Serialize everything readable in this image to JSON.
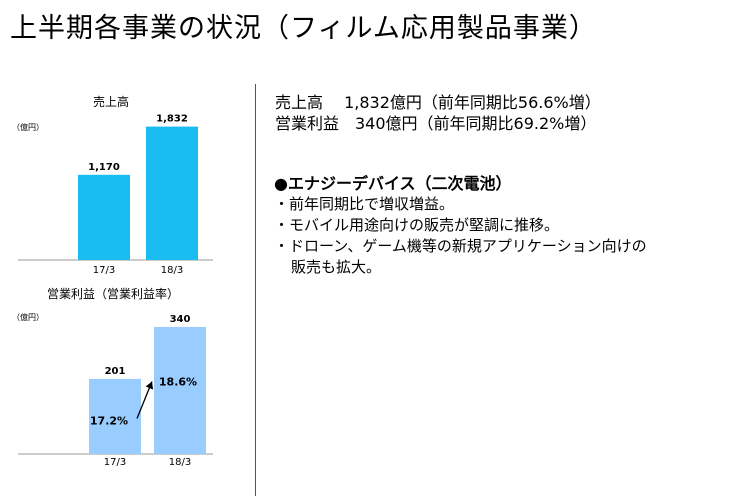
{
  "page": {
    "title": "上半期各事業の状況（フィルム応用製品事業）"
  },
  "summary": {
    "line1": "売上高　 1,832億円（前年同期比56.6%増）",
    "line2": "営業利益　340億円（前年同期比69.2%増）"
  },
  "segment": {
    "heading": "●エナジーデバイス（二次電池）",
    "bullets": [
      "・前年同期比で増収増益。",
      "・モバイル用途向けの販売が堅調に推移。",
      "・ドローン、ゲーム機等の新規アプリケーション向けの"
    ],
    "continuation": "販売も拡大。"
  },
  "colors": {
    "sales_bar": "#19bdef",
    "profit_bar": "#99ccff",
    "arrow": "#000000",
    "divider": "#555555"
  },
  "chart_data": [
    {
      "type": "bar",
      "title": "売上高",
      "unit_label": "（億円）",
      "categories": [
        "17/3",
        "18/3"
      ],
      "values": [
        1170,
        1832
      ],
      "value_labels": [
        "1,170",
        "1,832"
      ],
      "ylim": [
        0,
        1950
      ]
    },
    {
      "type": "bar",
      "title": "営業利益（営業利益率）",
      "unit_label": "（億円）",
      "categories": [
        "17/3",
        "18/3"
      ],
      "values": [
        201,
        340
      ],
      "value_labels": [
        "201",
        "340"
      ],
      "margins": [
        "17.2%",
        "18.6%"
      ],
      "ylim": [
        0,
        372
      ]
    }
  ]
}
